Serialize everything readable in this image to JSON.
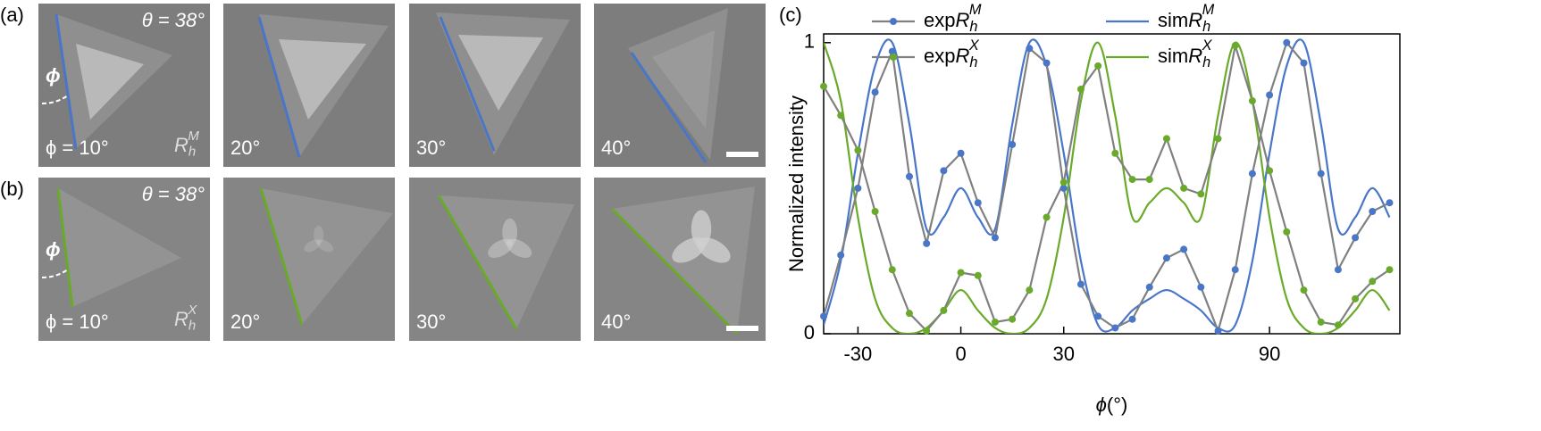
{
  "panels": {
    "a": {
      "label": "(a)",
      "theta": "θ = 38°",
      "phi": "ϕ",
      "images": [
        {
          "angle": "ϕ = 10°",
          "tag": {
            "base": "R",
            "sub": "h",
            "sup": "M"
          }
        },
        {
          "angle": "20°"
        },
        {
          "angle": "30°"
        },
        {
          "angle": "40°"
        }
      ]
    },
    "b": {
      "label": "(b)",
      "theta": "θ = 38°",
      "phi": "ϕ",
      "images": [
        {
          "angle": "ϕ = 10°",
          "tag": {
            "base": "R",
            "sub": "h",
            "sup": "X"
          }
        },
        {
          "angle": "20°"
        },
        {
          "angle": "30°"
        },
        {
          "angle": "40°"
        }
      ]
    }
  },
  "chart_data": {
    "type": "line",
    "panel_label": "(c)",
    "x_label": {
      "symbol": "ϕ",
      "unit": "(°)"
    },
    "y_label": "Normalized intensity",
    "x": [
      -40,
      -35,
      -30,
      -25,
      -20,
      -15,
      -10,
      -5,
      0,
      5,
      10,
      15,
      20,
      25,
      30,
      35,
      40,
      45,
      50,
      55,
      60,
      65,
      70,
      75,
      80,
      85,
      90,
      95,
      100,
      105,
      110,
      115,
      120,
      125
    ],
    "xlim": [
      -40,
      128
    ],
    "ylim": [
      0,
      1.03
    ],
    "xticks": [
      -30,
      0,
      30,
      90
    ],
    "yticks": [
      0,
      1
    ],
    "series": [
      {
        "name": "exp",
        "symbol": {
          "base": "R",
          "sub": "h",
          "sup": "M"
        },
        "color": "#4a76c8",
        "line_color": "#808080",
        "markers": true,
        "values": [
          0.06,
          0.27,
          0.5,
          0.83,
          0.97,
          0.54,
          0.31,
          0.56,
          0.62,
          0.45,
          0.33,
          0.65,
          0.98,
          0.93,
          0.5,
          0.17,
          0.06,
          0.02,
          0.05,
          0.16,
          0.26,
          0.29,
          0.16,
          0.01,
          0.22,
          0.55,
          0.82,
          1.0,
          0.93,
          0.55,
          0.22,
          0.33,
          0.42,
          0.45
        ]
      },
      {
        "name": "exp",
        "symbol": {
          "base": "R",
          "sub": "h",
          "sup": "X"
        },
        "color": "#6aaa2a",
        "line_color": "#808080",
        "markers": true,
        "values": [
          0.85,
          0.75,
          0.63,
          0.42,
          0.22,
          0.07,
          0.01,
          0.08,
          0.21,
          0.2,
          0.04,
          0.05,
          0.15,
          0.4,
          0.52,
          0.84,
          0.92,
          0.62,
          0.53,
          0.53,
          0.67,
          0.5,
          0.48,
          0.67,
          0.99,
          0.8,
          0.56,
          0.35,
          0.15,
          0.04,
          0.03,
          0.12,
          0.18,
          0.22
        ]
      },
      {
        "name": "sim",
        "symbol": {
          "base": "R",
          "sub": "h",
          "sup": "M"
        },
        "color": "#4a76c8",
        "markers": false,
        "values": [
          0.03,
          0.25,
          0.62,
          0.92,
          1.0,
          0.72,
          0.36,
          0.4,
          0.5,
          0.4,
          0.36,
          0.72,
          1.0,
          0.92,
          0.62,
          0.25,
          0.03,
          0.02,
          0.08,
          0.12,
          0.15,
          0.12,
          0.08,
          0.02,
          0.03,
          0.25,
          0.62,
          0.92,
          1.0,
          0.72,
          0.36,
          0.4,
          0.5,
          0.4
        ]
      },
      {
        "name": "sim",
        "symbol": {
          "base": "R",
          "sub": "h",
          "sup": "X"
        },
        "color": "#6aaa2a",
        "markers": false,
        "values": [
          1.0,
          0.8,
          0.4,
          0.12,
          0.02,
          0.0,
          0.02,
          0.08,
          0.15,
          0.08,
          0.02,
          0.0,
          0.02,
          0.12,
          0.4,
          0.8,
          1.0,
          0.75,
          0.4,
          0.45,
          0.5,
          0.45,
          0.4,
          0.75,
          1.0,
          0.8,
          0.4,
          0.12,
          0.02,
          0.0,
          0.02,
          0.08,
          0.15,
          0.08
        ]
      }
    ]
  }
}
